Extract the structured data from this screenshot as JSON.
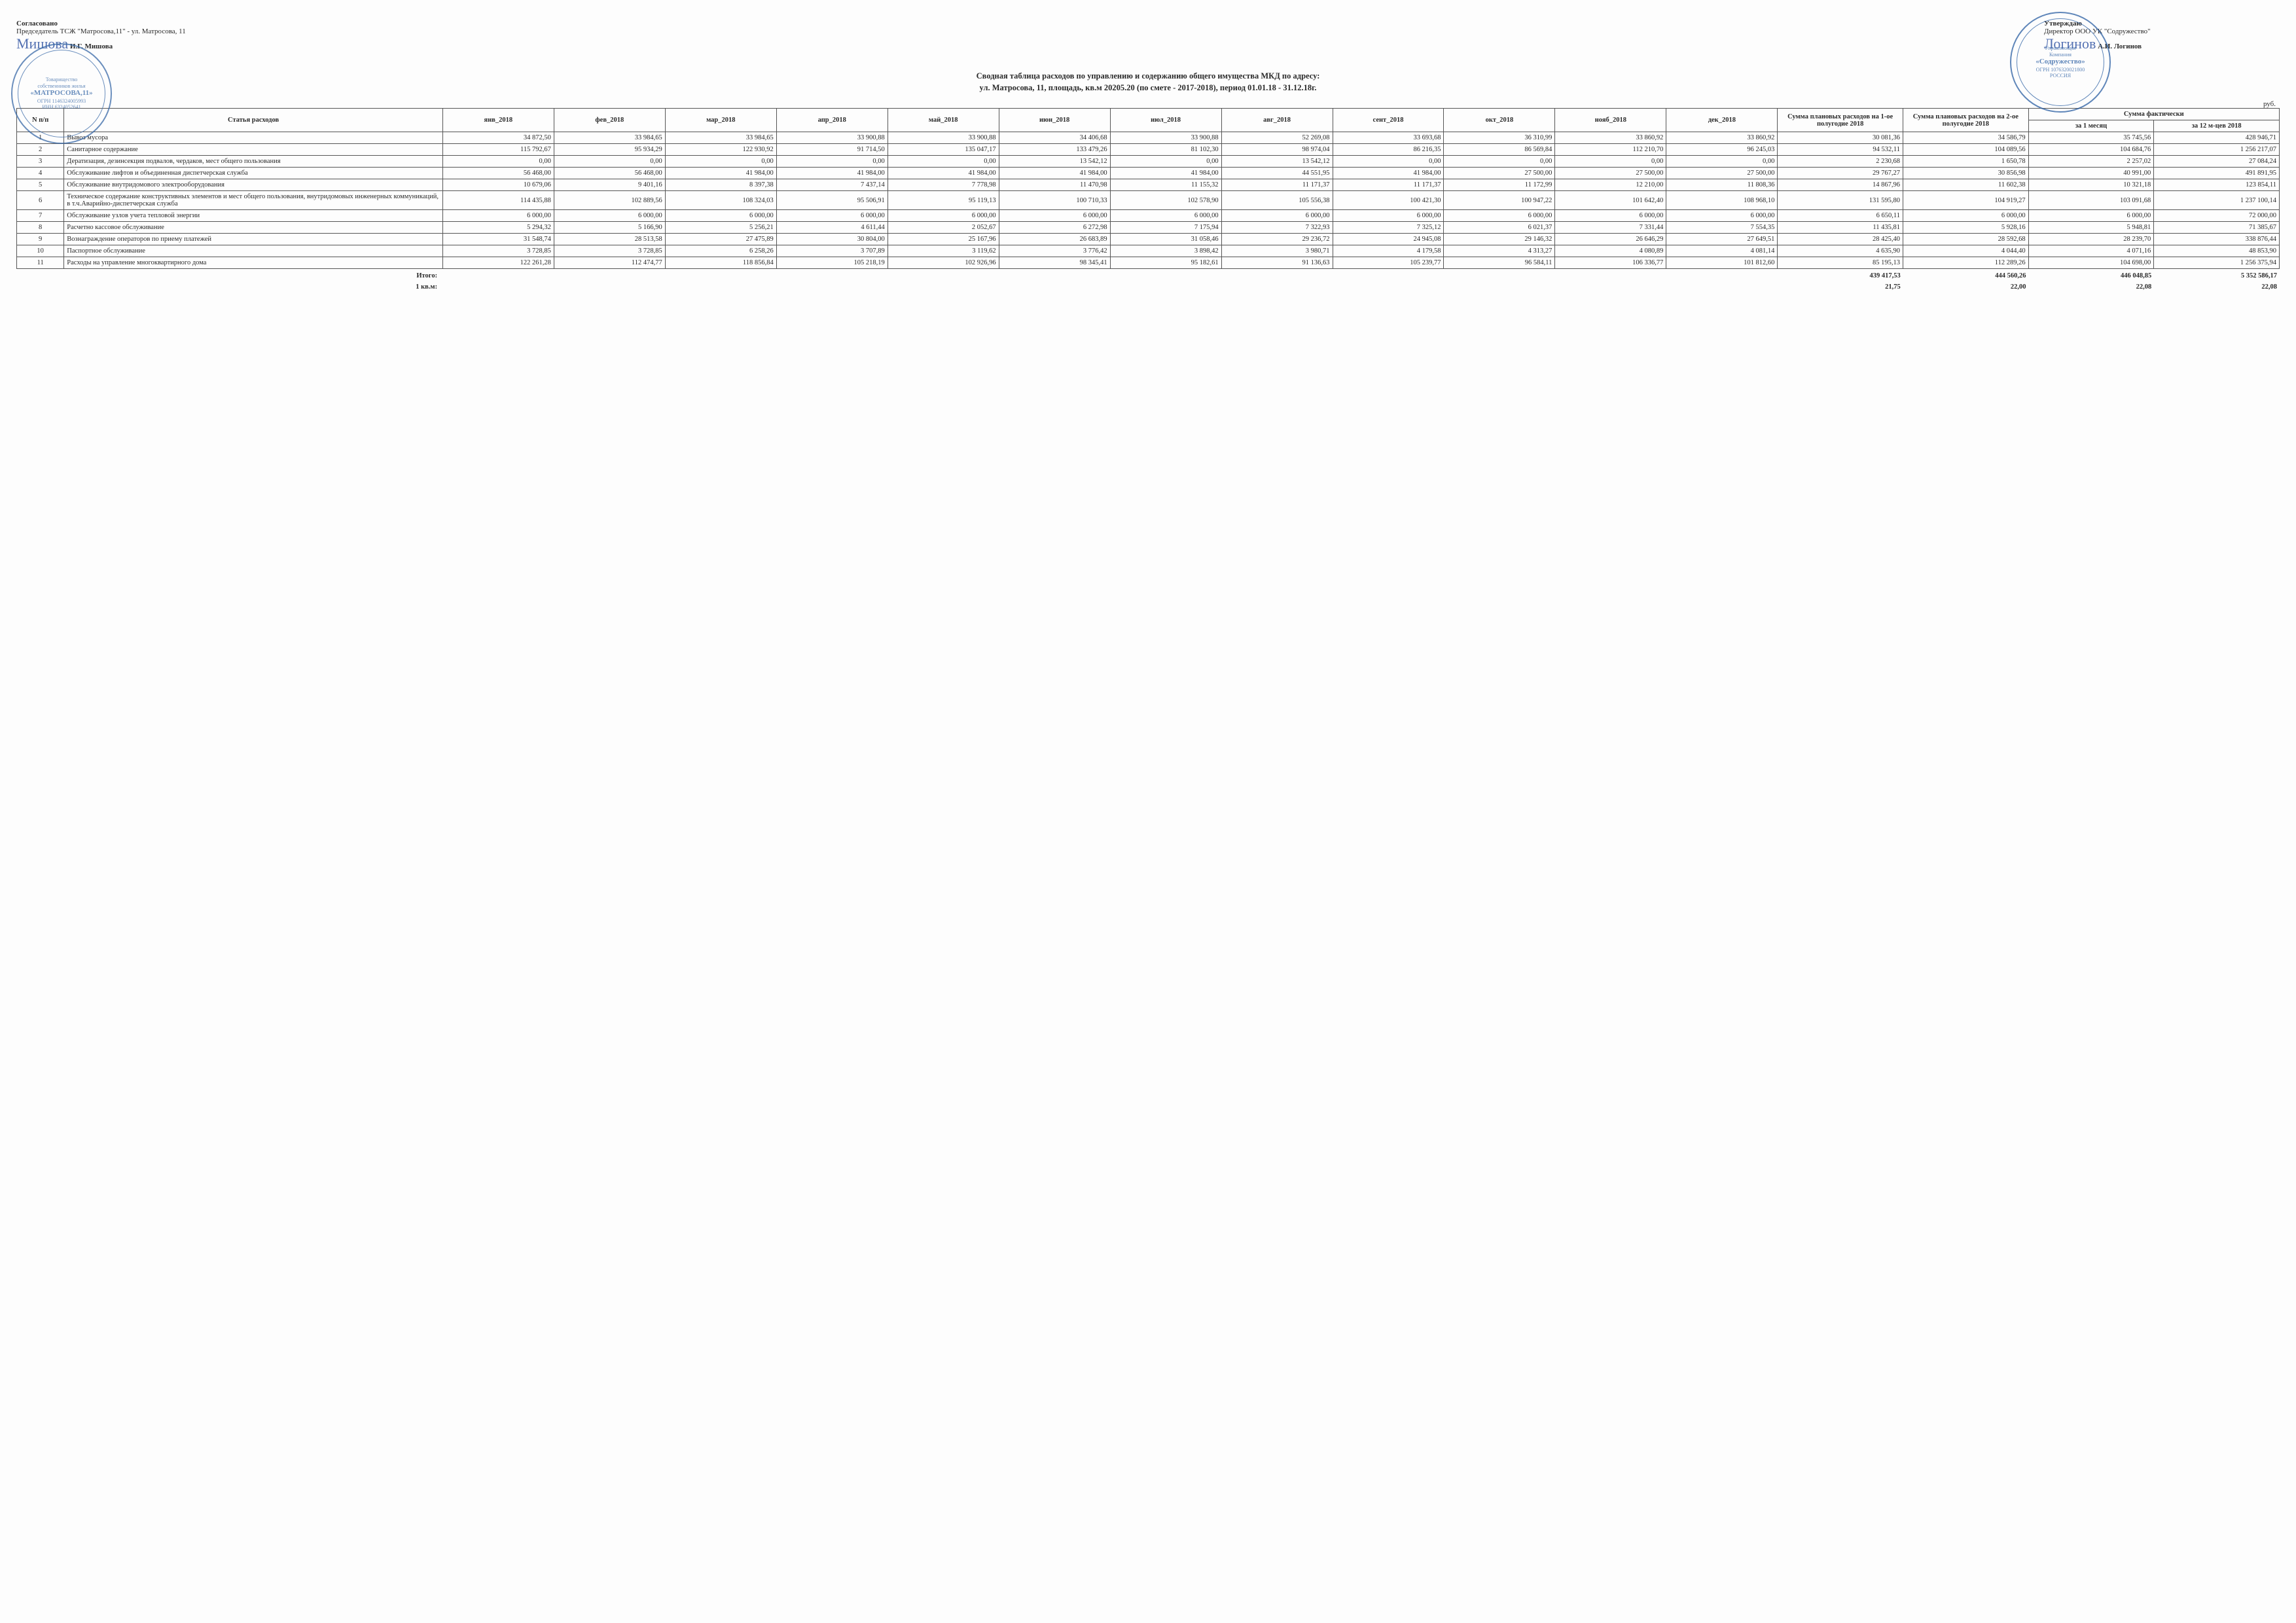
{
  "approval_left": {
    "agreed": "Согласовано",
    "chair": "Председатель ТСЖ \"Матросова,11\" - ул. Матросова, 11",
    "name": "И.Г. Мишова",
    "stamp_lines": [
      "Товарищество",
      "собственников жилья",
      "«МАТРОСОВА,11»",
      "ОГРН 1146324005993",
      "ИНН 6324052641"
    ]
  },
  "approval_right": {
    "approve": "Утверждаю",
    "director": "Директор ООО УК \"Содружество\"",
    "name": "А.И. Логинов",
    "stamp_lines": [
      "Управляющая",
      "Компания",
      "«Содружество»",
      "ОГРН 1076320021800",
      "РОССИЯ"
    ]
  },
  "title_line1": "Сводная таблица расходов по управлению и содержанию общего имущества МКД по адресу:",
  "title_line2": "ул. Матросова, 11, площадь, кв.м 20205.20 (по смете - 2017-2018), период 01.01.18 - 31.12.18г.",
  "unit": "руб.",
  "columns": {
    "idx": "N п/п",
    "name": "Статья расходов",
    "months": [
      "янв_2018",
      "фев_2018",
      "мар_2018",
      "апр_2018",
      "май_2018",
      "июн_2018",
      "июл_2018",
      "авг_2018",
      "сент_2018",
      "окт_2018",
      "нояб_2018",
      "дек_2018"
    ],
    "sum1": "Сумма плановых расходов на 1-ое полугодие 2018",
    "sum2": "Сумма плановых расходов на 2-ое полугодие 2018",
    "fact_group": "Сумма фактически",
    "fact1": "за 1 месяц",
    "fact2": "за 12 м-цев 2018"
  },
  "rows": [
    {
      "n": "1",
      "name": "Вывоз мусора",
      "v": [
        "34 872,50",
        "33 984,65",
        "33 984,65",
        "33 900,88",
        "33 900,88",
        "34 406,68",
        "33 900,88",
        "52 269,08",
        "33 693,68",
        "36 310,99",
        "33 860,92",
        "33 860,92",
        "30 081,36",
        "34 586,79",
        "35 745,56",
        "428 946,71"
      ]
    },
    {
      "n": "2",
      "name": "Санитарное содержание",
      "v": [
        "115 792,67",
        "95 934,29",
        "122 930,92",
        "91 714,50",
        "135 047,17",
        "133 479,26",
        "81 102,30",
        "98 974,04",
        "86 216,35",
        "86 569,84",
        "112 210,70",
        "96 245,03",
        "94 532,11",
        "104 089,56",
        "104 684,76",
        "1 256 217,07"
      ]
    },
    {
      "n": "3",
      "name": "Дератизация, дезинсекция подвалов, чердаков, мест общего пользования",
      "v": [
        "0,00",
        "0,00",
        "0,00",
        "0,00",
        "0,00",
        "13 542,12",
        "0,00",
        "13 542,12",
        "0,00",
        "0,00",
        "0,00",
        "0,00",
        "2 230,68",
        "1 650,78",
        "2 257,02",
        "27 084,24"
      ]
    },
    {
      "n": "4",
      "name": "Обслуживание лифтов и объединенная диспетчерская служба",
      "v": [
        "56 468,00",
        "56 468,00",
        "41 984,00",
        "41 984,00",
        "41 984,00",
        "41 984,00",
        "41 984,00",
        "44 551,95",
        "41 984,00",
        "27 500,00",
        "27 500,00",
        "27 500,00",
        "29 767,27",
        "30 856,98",
        "40 991,00",
        "491 891,95"
      ]
    },
    {
      "n": "5",
      "name": "Обслуживание внутридомового электрооборудования",
      "v": [
        "10 679,06",
        "9 401,16",
        "8 397,38",
        "7 437,14",
        "7 778,98",
        "11 470,98",
        "11 155,32",
        "11 171,37",
        "11 171,37",
        "11 172,99",
        "12 210,00",
        "11 808,36",
        "14 867,96",
        "11 602,38",
        "10 321,18",
        "123 854,11"
      ]
    },
    {
      "n": "6",
      "name": "Техническое содержание конструктивных элементов и мест общего пользования, внутридомовых инженерных коммуникаций, в т.ч.Аварийно-диспетчерская служба",
      "v": [
        "114 435,88",
        "102 889,56",
        "108 324,03",
        "95 506,91",
        "95 119,13",
        "100 710,33",
        "102 578,90",
        "105 556,38",
        "100 421,30",
        "100 947,22",
        "101 642,40",
        "108 968,10",
        "131 595,80",
        "104 919,27",
        "103 091,68",
        "1 237 100,14"
      ]
    },
    {
      "n": "7",
      "name": "Обслуживание узлов учета тепловой энергии",
      "v": [
        "6 000,00",
        "6 000,00",
        "6 000,00",
        "6 000,00",
        "6 000,00",
        "6 000,00",
        "6 000,00",
        "6 000,00",
        "6 000,00",
        "6 000,00",
        "6 000,00",
        "6 000,00",
        "6 650,11",
        "6 000,00",
        "6 000,00",
        "72 000,00"
      ]
    },
    {
      "n": "8",
      "name": "Расчетно кассовое обслуживание",
      "v": [
        "5 294,32",
        "5 166,90",
        "5 256,21",
        "4 611,44",
        "2 052,67",
        "6 272,98",
        "7 175,94",
        "7 322,93",
        "7 325,12",
        "6 021,37",
        "7 331,44",
        "7 554,35",
        "11 435,81",
        "5 928,16",
        "5 948,81",
        "71 385,67"
      ]
    },
    {
      "n": "9",
      "name": "Вознаграждение операторов по приему платежей",
      "v": [
        "31 548,74",
        "28 513,58",
        "27 475,89",
        "30 804,00",
        "25 167,96",
        "26 683,89",
        "31 058,46",
        "29 236,72",
        "24 945,08",
        "29 146,32",
        "26 646,29",
        "27 649,51",
        "28 425,40",
        "28 592,68",
        "28 239,70",
        "338 876,44"
      ]
    },
    {
      "n": "10",
      "name": "Паспортное обслуживание",
      "v": [
        "3 728,85",
        "3 728,85",
        "6 258,26",
        "3 707,89",
        "3 119,62",
        "3 776,42",
        "3 898,42",
        "3 980,71",
        "4 179,58",
        "4 313,27",
        "4 080,89",
        "4 081,14",
        "4 635,90",
        "4 044,40",
        "4 071,16",
        "48 853,90"
      ]
    },
    {
      "n": "11",
      "name": "Расходы на управление многоквартирного дома",
      "v": [
        "122 261,28",
        "112 474,77",
        "118 856,84",
        "105 218,19",
        "102 926,96",
        "98 345,41",
        "95 182,61",
        "91 136,63",
        "105 239,77",
        "96 584,11",
        "106 336,77",
        "101 812,60",
        "85 195,13",
        "112 289,26",
        "104 698,00",
        "1 256 375,94"
      ]
    }
  ],
  "totals": {
    "label1": "Итого:",
    "label2": "1 кв.м:",
    "v1": [
      "439 417,53",
      "444 560,26",
      "446 048,85",
      "5 352 586,17"
    ],
    "v2": [
      "21,75",
      "22,00",
      "22,08",
      "22,08"
    ]
  },
  "colors": {
    "stamp": "#3a6aa8",
    "ink": "#2a2a2a",
    "sig": "#2b4fa0"
  }
}
